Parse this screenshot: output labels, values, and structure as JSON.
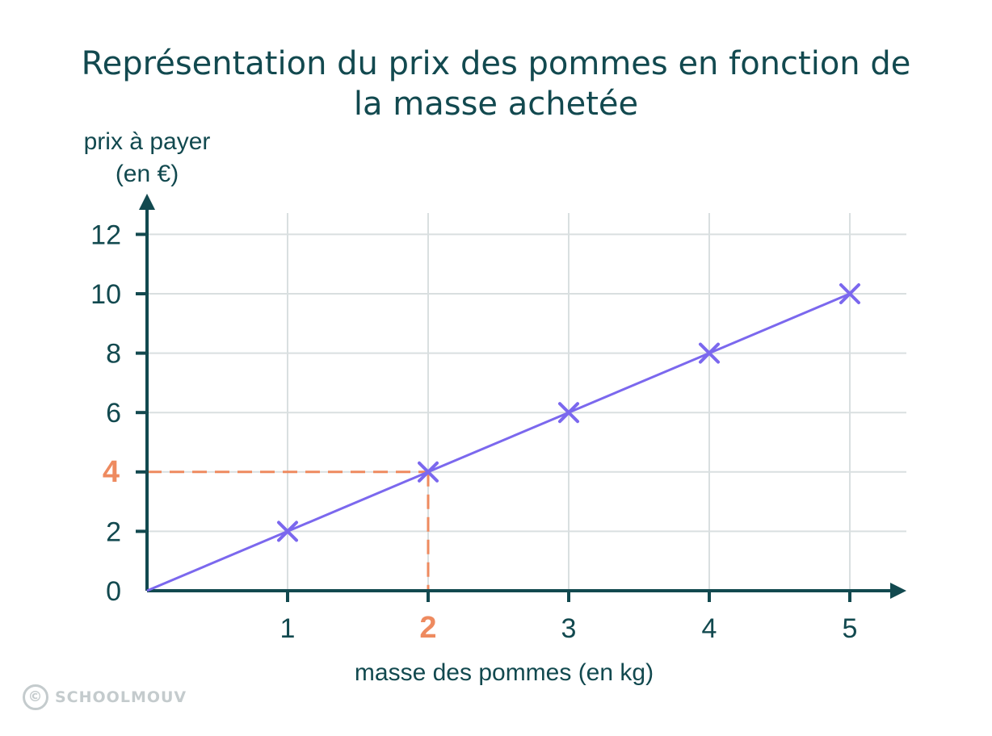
{
  "chart_data": {
    "type": "line",
    "title_line1": "Représentation du prix des pommes en fonction de",
    "title_line2": "la masse achetée",
    "ylabel_line1": "prix à payer",
    "ylabel_line2": "(en €)",
    "xlabel": "masse des pommes (en kg)",
    "x_ticks": [
      1,
      2,
      3,
      4,
      5
    ],
    "y_ticks": [
      0,
      2,
      4,
      6,
      8,
      10,
      12
    ],
    "xlim": [
      0,
      5.4
    ],
    "ylim": [
      0,
      12.4
    ],
    "grid": true,
    "series": [
      {
        "x": [
          0,
          1,
          2,
          3,
          4,
          5
        ],
        "y": [
          0,
          2,
          4,
          6,
          8,
          10
        ],
        "markers": [
          1,
          2,
          3,
          4,
          5
        ]
      }
    ],
    "highlight": {
      "x": 2,
      "y": 4
    },
    "colors": {
      "line": "#7b68ee",
      "axis": "#12494f",
      "grid": "#d9dfe0",
      "highlight": "#ee8a5f"
    }
  },
  "watermark": {
    "icon": "copyright-icon",
    "text": "SCHOOLMOUV"
  }
}
